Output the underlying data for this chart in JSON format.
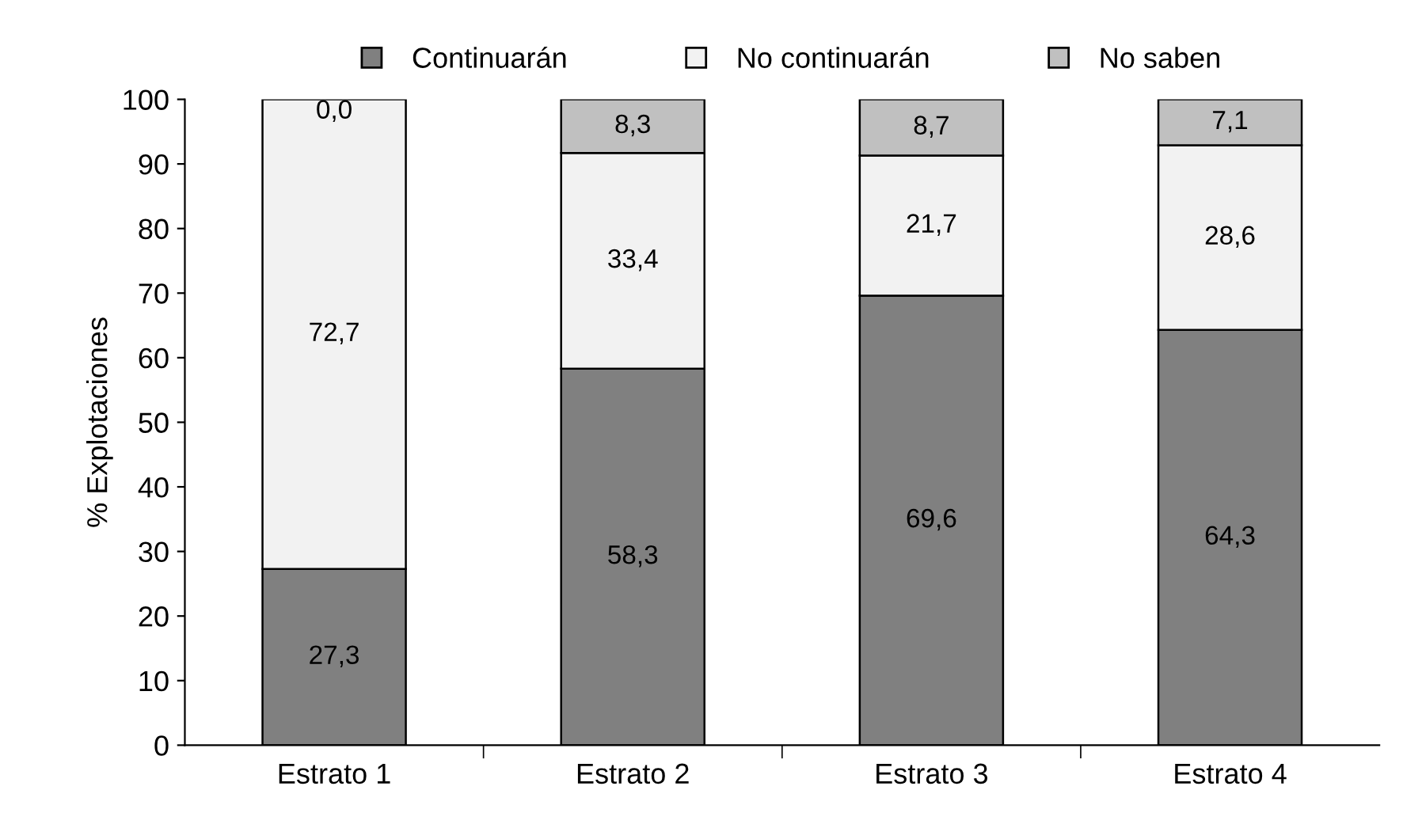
{
  "chart_data": {
    "type": "bar",
    "stacked": true,
    "ylabel": "% Explotaciones",
    "categories": [
      "Estrato 1",
      "Estrato 2",
      "Estrato 3",
      "Estrato 4"
    ],
    "series": [
      {
        "name": "Continuarán",
        "color": "#808080",
        "values": [
          27.3,
          58.3,
          69.6,
          64.3
        ],
        "value_labels": [
          "27,3",
          "58,3",
          "69,6",
          "64,3"
        ]
      },
      {
        "name": "No continuarán",
        "color": "#f2f2f2",
        "values": [
          72.7,
          33.4,
          21.7,
          28.6
        ],
        "value_labels": [
          "72,7",
          "33,4",
          "21,7",
          "28,6"
        ]
      },
      {
        "name": "No saben",
        "color": "#c0c0c0",
        "values": [
          0.0,
          8.3,
          8.7,
          7.1
        ],
        "value_labels": [
          "0,0",
          "8,3",
          "8,7",
          "7,1"
        ]
      }
    ],
    "ylim": [
      0,
      100
    ],
    "yticks": [
      0,
      10,
      20,
      30,
      40,
      50,
      60,
      70,
      80,
      90,
      100
    ],
    "grid": false,
    "legend": "top"
  }
}
